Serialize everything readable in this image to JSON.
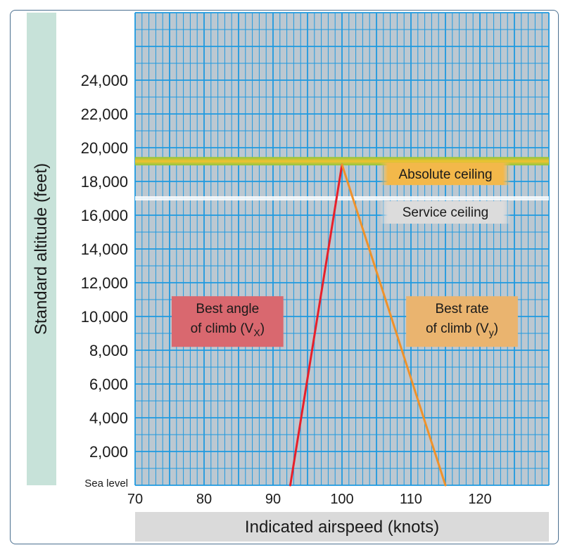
{
  "chart_data": {
    "type": "line",
    "xlabel": "Indicated airspeed (knots)",
    "ylabel": "Standard altitude (feet)",
    "xlim": [
      70,
      130
    ],
    "ylim": [
      0,
      28000
    ],
    "x_ticks": [
      "70",
      "80",
      "90",
      "100",
      "110",
      "120"
    ],
    "x_tick_values": [
      70,
      80,
      90,
      100,
      110,
      120
    ],
    "y_ticks": [
      "Sea level",
      "2,000",
      "4,000",
      "6,000",
      "8,000",
      "10,000",
      "12,000",
      "14,000",
      "16,000",
      "18,000",
      "20,000",
      "22,000",
      "24,000"
    ],
    "y_tick_values": [
      0,
      2000,
      4000,
      6000,
      8000,
      10000,
      12000,
      14000,
      16000,
      18000,
      20000,
      22000,
      24000
    ],
    "grid": "on",
    "series": [
      {
        "name": "Best angle of climb (Vx)",
        "color": "#e8202a",
        "points": [
          [
            92.5,
            0
          ],
          [
            100,
            19000
          ]
        ]
      },
      {
        "name": "Best rate of climb (Vy)",
        "color": "#f0922a",
        "points": [
          [
            115,
            0
          ],
          [
            100,
            19000
          ]
        ]
      }
    ],
    "reference_lines": [
      {
        "label": "Absolute ceiling",
        "y": 19200,
        "color": "#8ec63f"
      },
      {
        "label": "Service ceiling",
        "y": 17000,
        "color": "#ffffff"
      }
    ],
    "annotations": {
      "vx": {
        "line1": "Best angle",
        "line2": "of climb (V",
        "sub": "X",
        "close": ")",
        "color": "#d9686f"
      },
      "vy": {
        "line1": "Best rate",
        "line2": "of climb (V",
        "sub": "y",
        "close": ")",
        "color": "#eab46f"
      },
      "absolute": {
        "text": "Absolute ceiling",
        "color": "#f0b040"
      },
      "service": {
        "text": "Service ceiling",
        "color": "#d6d6d6"
      }
    }
  }
}
